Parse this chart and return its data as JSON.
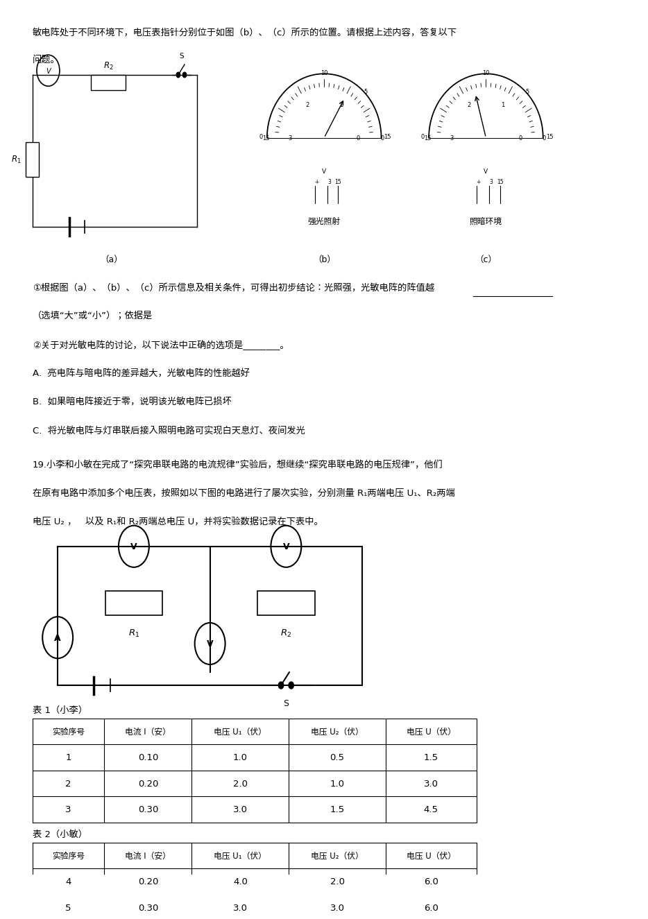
{
  "bg_color": "#ffffff",
  "page_width": 9.2,
  "page_height": 13.02,
  "top_text_line1": "敏电阵处于不同环境下，电压表指针分别位于如图（b）、（c）所示的位置。请根据上述内容，答复以下",
  "top_text_line2": "问题。",
  "fig_label_a": "（a）",
  "fig_label_b": "（b）",
  "fig_label_c": "（c）",
  "fig_b_caption": "强光照射",
  "fig_c_caption": "照暗环境",
  "q1_text": "①根据图（a）、（b）、（c）所示信息及相关条件，可得出初步结论：光照强，光敏电阵的阵值越",
  "q1_sub": "（选填“大”或“小”）；依据是",
  "q2_text": "②关于对光敏电阵的讨论，以下说法中正确的选项是________。",
  "optA": "A.  亮电阵与暗电阵的差异越大，光敏电阵的性能越好",
  "optB": "B.  如果暗电阵接近于零，说明该光敏电阵已损坏",
  "optC": "C.  将光敏电阵与灯串联后接入照明电路可实现白天息灯、夜间发光",
  "q19_line1": "19.小李和小敏在完成了“探究串联电路的电流规律”实验后，想继续“探究串联电路的电压规律”，他们",
  "q19_line2": "在原有电路中添加多个电压表，按照如以下图的电路进行了屡次实验，分别测量 R₁两端电压 U₁、R₂两端",
  "q19_line3": "电压 U₂ ，   以及 R₁和 R₂两端总电压 U，并将实验数据记录在下表中。",
  "table1_title": "表 1（小李）",
  "table1_headers": [
    "实验序号",
    "电流 I（安）",
    "电压 U₁（伏）",
    "电压 U₂（伏）",
    "电压 U（伏）"
  ],
  "table1_rows": [
    [
      "1",
      "0.10",
      "1.0",
      "0.5",
      "1.5"
    ],
    [
      "2",
      "0.20",
      "2.0",
      "1.0",
      "3.0"
    ],
    [
      "3",
      "0.30",
      "3.0",
      "1.5",
      "4.5"
    ]
  ],
  "table2_title": "表 2（小敏）",
  "table2_headers": [
    "实验序号",
    "电流 I（安）",
    "电压 U₁（伏）",
    "电压 U₂（伏）",
    "电压 U（伏）"
  ],
  "table2_rows": [
    [
      "4",
      "0.20",
      "4.0",
      "2.0",
      "6.0"
    ],
    [
      "5",
      "0.30",
      "3.0",
      "3.0",
      "6.0"
    ]
  ]
}
